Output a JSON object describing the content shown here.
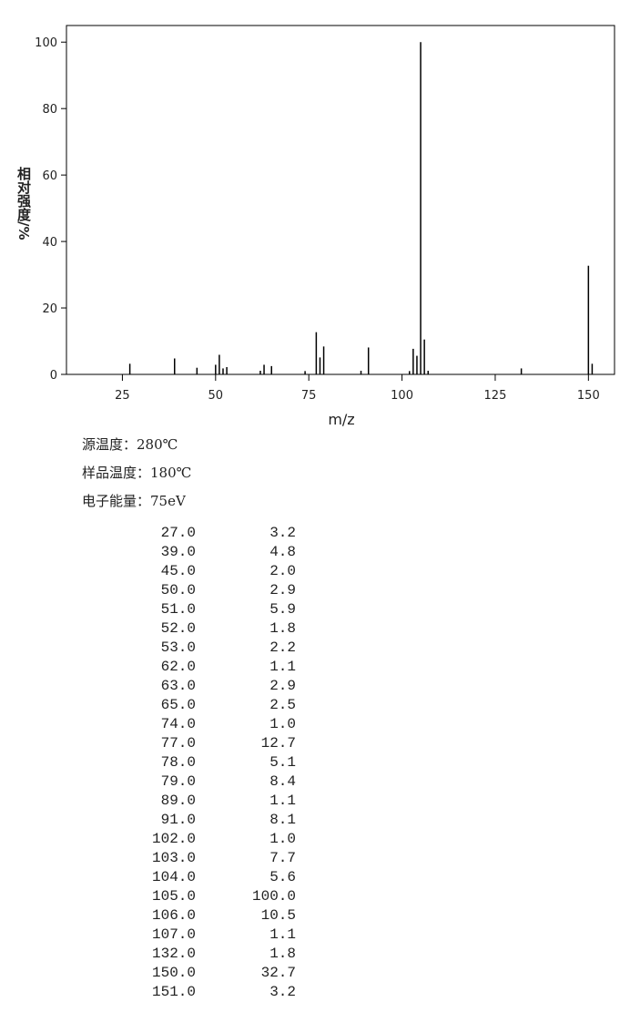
{
  "chart_data": {
    "type": "bar",
    "x_label": "m/z",
    "y_label": "相对强度/%",
    "x": [
      27,
      39,
      45,
      50,
      51,
      52,
      53,
      62,
      63,
      65,
      74,
      77,
      78,
      79,
      89,
      91,
      102,
      103,
      104,
      105,
      106,
      107,
      132,
      150,
      151
    ],
    "values": [
      3.2,
      4.8,
      2.0,
      2.9,
      5.9,
      1.8,
      2.2,
      1.1,
      2.9,
      2.5,
      1.0,
      12.7,
      5.1,
      8.4,
      1.1,
      8.1,
      1.0,
      7.7,
      5.6,
      100.0,
      10.5,
      1.1,
      1.8,
      32.7,
      3.2
    ],
    "color": "#000000",
    "xlim": [
      10,
      157
    ],
    "xticks": [
      25,
      50,
      75,
      100,
      125,
      150
    ],
    "ylim": [
      0,
      105
    ],
    "yticks": [
      0,
      20,
      40,
      60,
      80,
      100
    ]
  },
  "info": [
    "源温度：280℃",
    "样品温度：180℃",
    "电子能量：75eV"
  ],
  "table": {
    "rows": [
      [
        "27.0",
        "3.2"
      ],
      [
        "39.0",
        "4.8"
      ],
      [
        "45.0",
        "2.0"
      ],
      [
        "50.0",
        "2.9"
      ],
      [
        "51.0",
        "5.9"
      ],
      [
        "52.0",
        "1.8"
      ],
      [
        "53.0",
        "2.2"
      ],
      [
        "62.0",
        "1.1"
      ],
      [
        "63.0",
        "2.9"
      ],
      [
        "65.0",
        "2.5"
      ],
      [
        "74.0",
        "1.0"
      ],
      [
        "77.0",
        "12.7"
      ],
      [
        "78.0",
        "5.1"
      ],
      [
        "79.0",
        "8.4"
      ],
      [
        "89.0",
        "1.1"
      ],
      [
        "91.0",
        "8.1"
      ],
      [
        "102.0",
        "1.0"
      ],
      [
        "103.0",
        "7.7"
      ],
      [
        "104.0",
        "5.6"
      ],
      [
        "105.0",
        "100.0"
      ],
      [
        "106.0",
        "10.5"
      ],
      [
        "107.0",
        "1.1"
      ],
      [
        "132.0",
        "1.8"
      ],
      [
        "150.0",
        "32.7"
      ],
      [
        "151.0",
        "3.2"
      ]
    ]
  }
}
